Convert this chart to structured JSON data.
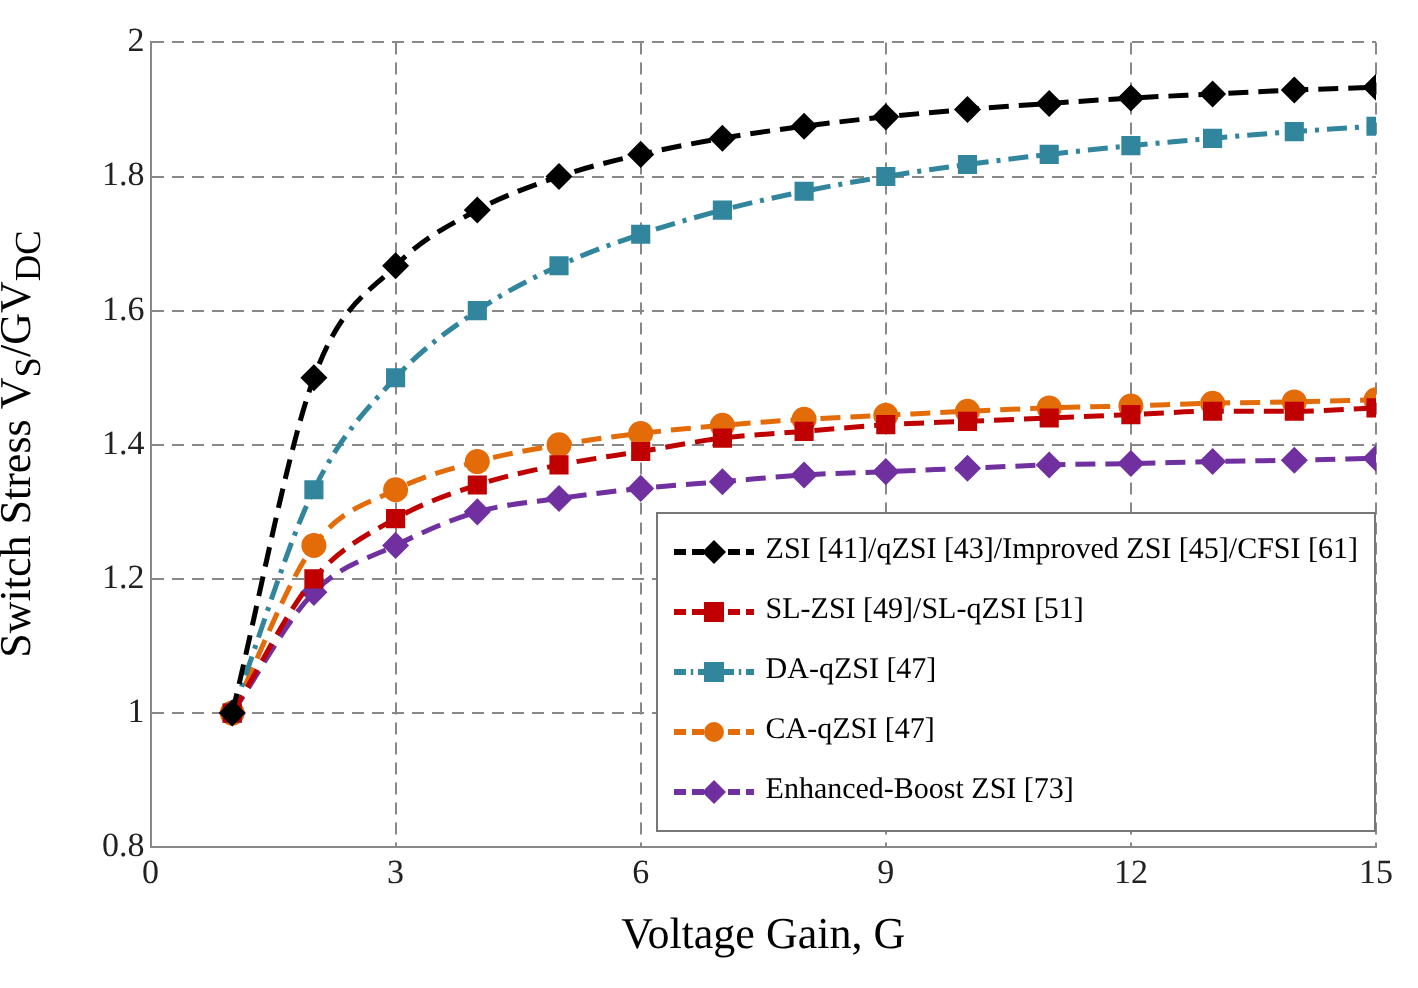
{
  "chart_data": {
    "type": "line",
    "xlabel": "Voltage Gain, G",
    "ylabel": "Switch Stress V$_{S}$/GV$_{DC}$",
    "x": [
      1,
      2,
      3,
      4,
      5,
      6,
      7,
      8,
      9,
      10,
      11,
      12,
      13,
      14,
      15
    ],
    "series": [
      {
        "name": "ZSI [41]/qZSI [43]/Improved ZSI [45]/CFSI [61]",
        "color": "#000000",
        "marker": "diamond",
        "line_style": "dashed",
        "values": [
          1,
          1.5,
          1.667,
          1.75,
          1.8,
          1.833,
          1.857,
          1.875,
          1.889,
          1.9,
          1.909,
          1.917,
          1.923,
          1.929,
          1.933
        ]
      },
      {
        "name": "SL-ZSI [49]/SL-qZSI [51]",
        "color": "#c00000",
        "marker": "square",
        "line_style": "dashed",
        "values": [
          1,
          1.2,
          1.29,
          1.34,
          1.37,
          1.39,
          1.41,
          1.42,
          1.43,
          1.435,
          1.44,
          1.445,
          1.45,
          1.45,
          1.455
        ]
      },
      {
        "name": "DA-qZSI [47]",
        "color": "#31859c",
        "marker": "square",
        "line_style": "dashdot",
        "values": [
          1,
          1.333,
          1.5,
          1.6,
          1.667,
          1.714,
          1.75,
          1.778,
          1.8,
          1.818,
          1.833,
          1.846,
          1.857,
          1.867,
          1.875
        ]
      },
      {
        "name": "CA-qZSI [47]",
        "color": "#e36c09",
        "marker": "circle",
        "line_style": "dashed",
        "values": [
          1,
          1.25,
          1.333,
          1.375,
          1.4,
          1.417,
          1.429,
          1.438,
          1.444,
          1.45,
          1.455,
          1.458,
          1.462,
          1.464,
          1.467
        ]
      },
      {
        "name": "Enhanced-Boost ZSI [73]",
        "color": "#7030a0",
        "marker": "diamond",
        "line_style": "dashed",
        "values": [
          1,
          1.18,
          1.25,
          1.3,
          1.32,
          1.335,
          1.345,
          1.355,
          1.36,
          1.365,
          1.37,
          1.372,
          1.375,
          1.377,
          1.38
        ]
      }
    ],
    "xlim": [
      0,
      15
    ],
    "xticks": [
      0,
      3,
      6,
      9,
      12,
      15
    ],
    "ylim": [
      0.8,
      2
    ],
    "yticks": [
      0.8,
      1,
      1.2,
      1.4,
      1.6,
      1.8,
      2
    ],
    "grid": true,
    "legend": "bottom right"
  }
}
